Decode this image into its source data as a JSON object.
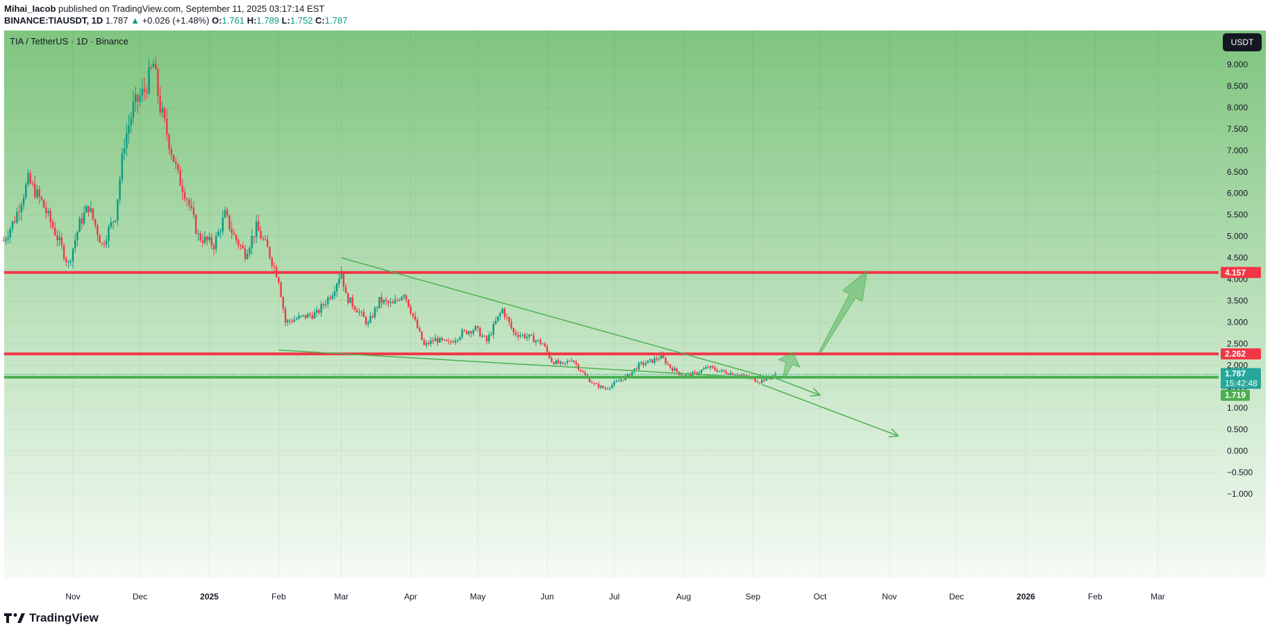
{
  "header": {
    "author": "Mihai_Iacob",
    "published_text": " published on TradingView.com, September 11, 2025 03:17:14 EST",
    "symbol": "BINANCE:TIAUSDT, 1D",
    "last": "1.787",
    "change_arrow": "▲",
    "change": "+0.026 (+1.48%)",
    "o_label": "O:",
    "o": "1.761",
    "h_label": "H:",
    "h": "1.789",
    "l_label": "L:",
    "l": "1.752",
    "c_label": "C:",
    "c": "1.787"
  },
  "chart_title": "TIA / TetherUS · 1D · Binance",
  "currency_button": "USDT",
  "footer": {
    "logo_text": "TradingView"
  },
  "colors": {
    "up": "#089981",
    "down": "#f23645",
    "resistance_line": "#f23645",
    "support_line": "#4caf50",
    "trend_line": "#4caf50",
    "bg_top": "#7fc57f",
    "bg_bottom": "#f5fbf5"
  },
  "chart_data": {
    "type": "candlestick",
    "y_axis": {
      "ticks": [
        "9.000",
        "8.500",
        "8.000",
        "7.500",
        "7.000",
        "6.500",
        "6.000",
        "5.500",
        "5.000",
        "4.500",
        "4.000",
        "3.500",
        "3.000",
        "2.500",
        "2.000",
        "1.500",
        "1.000",
        "0.500",
        "0.000",
        "−0.500",
        "−1.000"
      ],
      "tick_values": [
        9,
        8.5,
        8,
        7.5,
        7,
        6.5,
        6,
        5.5,
        5,
        4.5,
        4,
        3.5,
        3,
        2.5,
        2,
        1.5,
        1,
        0.5,
        0,
        -0.5,
        -1
      ],
      "ylim": [
        -1.05,
        9.9
      ]
    },
    "x_axis": {
      "ticks": [
        "Nov",
        "Dec",
        "2025",
        "Feb",
        "Mar",
        "Apr",
        "May",
        "Jun",
        "Jul",
        "Aug",
        "Sep",
        "Oct",
        "Nov",
        "Dec",
        "2026",
        "Feb",
        "Mar"
      ],
      "bold_ticks": [
        "2025",
        "2026"
      ]
    },
    "horizontal_levels": [
      {
        "value": 4.157,
        "label": "4.157",
        "color": "#f23645"
      },
      {
        "value": 2.262,
        "label": "2.262",
        "color": "#f23645"
      },
      {
        "value": 1.719,
        "label": "1.719",
        "color": "#4caf50"
      }
    ],
    "last_price": {
      "value": 1.787,
      "label": "1.787",
      "countdown": "15:42:48",
      "color": "#26a69a"
    },
    "trend_lines": [
      {
        "from": [
          "2025-03-01",
          4.5
        ],
        "to": [
          "2025-09-10",
          1.68
        ]
      },
      {
        "from": [
          "2025-02-01",
          2.35
        ],
        "to": [
          "2025-09-10",
          1.68
        ]
      }
    ],
    "projection_arrows": [
      {
        "from": [
          "2025-09-10",
          1.72
        ],
        "to": [
          "2025-10-01",
          1.3
        ],
        "type": "line-arrow"
      },
      {
        "from": [
          "2025-09-05",
          1.55
        ],
        "to": [
          "2025-11-05",
          0.35
        ],
        "type": "line-arrow"
      },
      {
        "from": [
          "2025-09-15",
          1.72
        ],
        "to": [
          "2025-09-19",
          2.3
        ],
        "type": "fat-arrow"
      },
      {
        "from": [
          "2025-10-01",
          2.3
        ],
        "to": [
          "2025-10-22",
          4.2
        ],
        "type": "fat-arrow"
      }
    ],
    "price_path": [
      [
        "2024-10-01",
        4.9
      ],
      [
        "2024-10-06",
        5.4
      ],
      [
        "2024-10-12",
        6.3
      ],
      [
        "2024-10-18",
        5.8
      ],
      [
        "2024-10-24",
        5.1
      ],
      [
        "2024-10-30",
        4.35
      ],
      [
        "2024-11-04",
        5.3
      ],
      [
        "2024-11-08",
        5.7
      ],
      [
        "2024-11-14",
        4.8
      ],
      [
        "2024-11-20",
        5.5
      ],
      [
        "2024-11-24",
        7.2
      ],
      [
        "2024-11-28",
        8.0
      ],
      [
        "2024-12-03",
        8.4
      ],
      [
        "2024-12-07",
        9.0
      ],
      [
        "2024-12-10",
        8.0
      ],
      [
        "2024-12-14",
        7.2
      ],
      [
        "2024-12-18",
        6.4
      ],
      [
        "2024-12-22",
        5.9
      ],
      [
        "2024-12-27",
        5.0
      ],
      [
        "2025-01-03",
        4.8
      ],
      [
        "2025-01-08",
        5.5
      ],
      [
        "2025-01-12",
        5.0
      ],
      [
        "2025-01-17",
        4.6
      ],
      [
        "2025-01-22",
        5.2
      ],
      [
        "2025-01-27",
        4.7
      ],
      [
        "2025-02-01",
        4.0
      ],
      [
        "2025-02-04",
        3.0
      ],
      [
        "2025-02-10",
        3.1
      ],
      [
        "2025-02-18",
        3.2
      ],
      [
        "2025-02-25",
        3.7
      ],
      [
        "2025-03-01",
        4.2
      ],
      [
        "2025-03-03",
        3.6
      ],
      [
        "2025-03-08",
        3.3
      ],
      [
        "2025-03-13",
        2.95
      ],
      [
        "2025-03-18",
        3.5
      ],
      [
        "2025-03-24",
        3.4
      ],
      [
        "2025-03-29",
        3.7
      ],
      [
        "2025-04-03",
        3.0
      ],
      [
        "2025-04-07",
        2.45
      ],
      [
        "2025-04-12",
        2.6
      ],
      [
        "2025-04-18",
        2.5
      ],
      [
        "2025-04-24",
        2.75
      ],
      [
        "2025-04-30",
        2.85
      ],
      [
        "2025-05-05",
        2.55
      ],
      [
        "2025-05-09",
        3.0
      ],
      [
        "2025-05-12",
        3.3
      ],
      [
        "2025-05-17",
        2.75
      ],
      [
        "2025-05-24",
        2.65
      ],
      [
        "2025-05-30",
        2.5
      ],
      [
        "2025-06-03",
        2.1
      ],
      [
        "2025-06-08",
        2.0
      ],
      [
        "2025-06-12",
        2.15
      ],
      [
        "2025-06-18",
        1.75
      ],
      [
        "2025-06-22",
        1.55
      ],
      [
        "2025-06-27",
        1.45
      ],
      [
        "2025-07-02",
        1.6
      ],
      [
        "2025-07-07",
        1.75
      ],
      [
        "2025-07-12",
        2.0
      ],
      [
        "2025-07-18",
        2.1
      ],
      [
        "2025-07-22",
        2.2
      ],
      [
        "2025-07-26",
        1.95
      ],
      [
        "2025-08-01",
        1.75
      ],
      [
        "2025-08-06",
        1.8
      ],
      [
        "2025-08-12",
        1.95
      ],
      [
        "2025-08-18",
        1.85
      ],
      [
        "2025-08-24",
        1.8
      ],
      [
        "2025-08-30",
        1.7
      ],
      [
        "2025-09-04",
        1.62
      ],
      [
        "2025-09-08",
        1.72
      ],
      [
        "2025-09-11",
        1.787
      ]
    ]
  }
}
